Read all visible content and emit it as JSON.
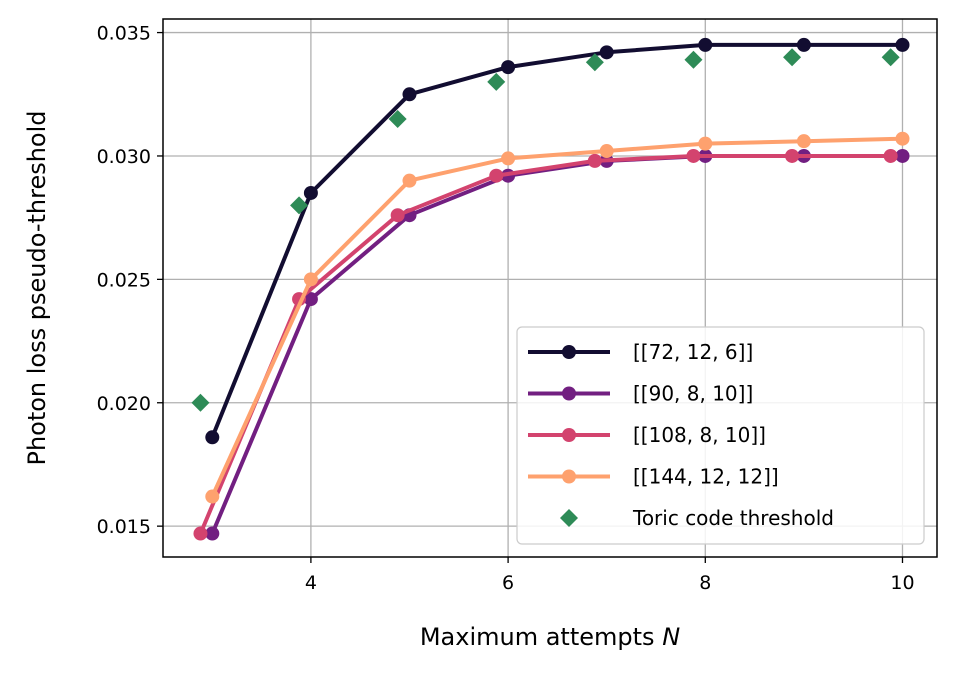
{
  "chart_data": {
    "type": "line",
    "xlabel": "Maximum attempts",
    "xlabel_var": "N",
    "ylabel": "Photon loss pseudo-threshold",
    "xlim": [
      2.5,
      10.35
    ],
    "ylim": [
      0.01375,
      0.03555
    ],
    "xticks": [
      4,
      6,
      8,
      10
    ],
    "yticks": [
      0.015,
      0.02,
      0.025,
      0.03,
      0.035
    ],
    "ytick_labels": [
      "0.015",
      "0.020",
      "0.025",
      "0.030",
      "0.035"
    ],
    "xtick_labels": [
      "4",
      "6",
      "8",
      "10"
    ],
    "grid": true,
    "legend_position": "lower-right",
    "series": [
      {
        "name": "[[72, 12, 6]]",
        "color": "#120d31",
        "marker": "circle",
        "x": [
          3,
          4,
          5,
          6,
          7,
          8,
          9,
          10
        ],
        "y": [
          0.0186,
          0.0285,
          0.0325,
          0.0336,
          0.0342,
          0.0345,
          0.0345,
          0.0345
        ]
      },
      {
        "name": "[[90, 8, 10]]",
        "color": "#721f81",
        "marker": "circle",
        "x": [
          3,
          4,
          5,
          6,
          7,
          8,
          9,
          10
        ],
        "y": [
          0.0147,
          0.0242,
          0.0276,
          0.0292,
          0.0298,
          0.03,
          0.03,
          0.03
        ]
      },
      {
        "name": "[[108, 8, 10]]",
        "color": "#d3436e",
        "marker": "circle",
        "x": [
          2.88,
          3.88,
          4.88,
          5.88,
          6.88,
          7.88,
          8.88,
          9.88
        ],
        "y": [
          0.0147,
          0.0242,
          0.0276,
          0.0292,
          0.0298,
          0.03,
          0.03,
          0.03
        ]
      },
      {
        "name": "[[144, 12, 12]]",
        "color": "#fea16e",
        "marker": "circle",
        "x": [
          3,
          4,
          5,
          6,
          7,
          8,
          9,
          10
        ],
        "y": [
          0.0162,
          0.025,
          0.029,
          0.0299,
          0.0302,
          0.0305,
          0.0306,
          0.0307
        ]
      },
      {
        "name": "Toric code threshold",
        "color": "#2e8b57",
        "marker": "diamond",
        "line": false,
        "x": [
          2.88,
          3.88,
          4.88,
          5.88,
          6.88,
          7.88,
          8.88,
          9.88
        ],
        "y": [
          0.02,
          0.028,
          0.0315,
          0.033,
          0.0338,
          0.0339,
          0.034,
          0.034
        ]
      }
    ]
  }
}
